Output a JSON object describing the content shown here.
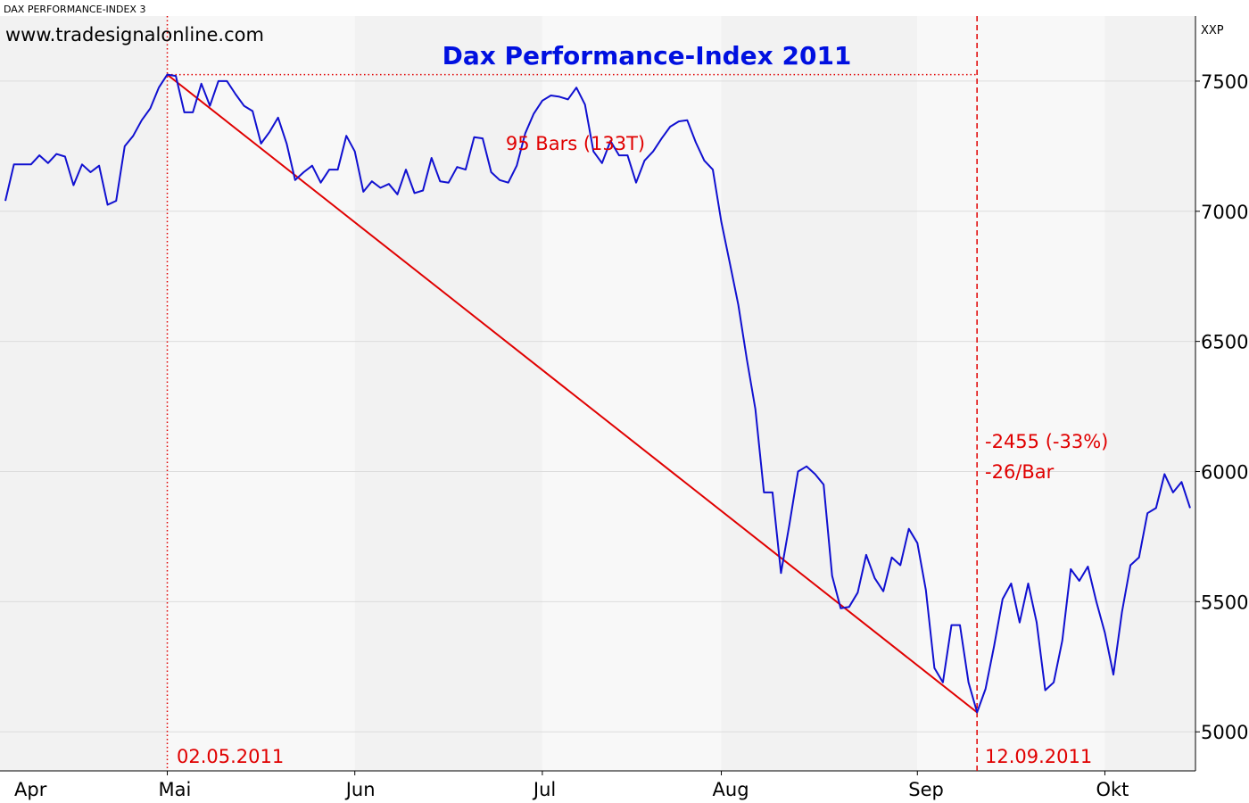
{
  "header": {
    "instrument": "DAX PERFORMANCE-INDEX 3",
    "website": "www.tradesignalonline.com",
    "unit": "XXP"
  },
  "colors": {
    "price_line": "#1010d0",
    "annotation": "#e00000",
    "title": "#0010e0",
    "band_dark": "#f2f2f2",
    "band_light": "#f8f8f8",
    "grid": "#dcdcdc"
  },
  "chart_data": {
    "type": "line",
    "title": "Dax Performance-Index 2011",
    "xlabel": "",
    "ylabel": "",
    "ylim": [
      4850,
      7750
    ],
    "xlim": [
      "2011-04-01",
      "2011-10-14"
    ],
    "grid": true,
    "y_ticks": [
      5000,
      5500,
      6000,
      6500,
      7000,
      7500
    ],
    "month_labels": [
      {
        "label": "Apr",
        "date": "2011-04-01"
      },
      {
        "label": "Mai",
        "date": "2011-05-02"
      },
      {
        "label": "Jun",
        "date": "2011-06-01"
      },
      {
        "label": "Jul",
        "date": "2011-07-01"
      },
      {
        "label": "Aug",
        "date": "2011-08-01"
      },
      {
        "label": "Sep",
        "date": "2011-09-01"
      },
      {
        "label": "Okt",
        "date": "2011-10-03"
      }
    ],
    "series": [
      {
        "values": [
          [
            "2011-04-01",
            7040
          ],
          [
            "2011-04-04",
            7180
          ],
          [
            "2011-04-05",
            7180
          ],
          [
            "2011-04-06",
            7180
          ],
          [
            "2011-04-07",
            7215
          ],
          [
            "2011-04-08",
            7185
          ],
          [
            "2011-04-11",
            7220
          ],
          [
            "2011-04-12",
            7210
          ],
          [
            "2011-04-13",
            7100
          ],
          [
            "2011-04-14",
            7180
          ],
          [
            "2011-04-15",
            7150
          ],
          [
            "2011-04-18",
            7175
          ],
          [
            "2011-04-19",
            7025
          ],
          [
            "2011-04-20",
            7040
          ],
          [
            "2011-04-21",
            7250
          ],
          [
            "2011-04-26",
            7290
          ],
          [
            "2011-04-27",
            7350
          ],
          [
            "2011-04-28",
            7395
          ],
          [
            "2011-04-29",
            7475
          ],
          [
            "2011-05-02",
            7525
          ],
          [
            "2011-05-03",
            7520
          ],
          [
            "2011-05-04",
            7380
          ],
          [
            "2011-05-05",
            7380
          ],
          [
            "2011-05-06",
            7490
          ],
          [
            "2011-05-09",
            7405
          ],
          [
            "2011-05-10",
            7500
          ],
          [
            "2011-05-11",
            7500
          ],
          [
            "2011-05-12",
            7450
          ],
          [
            "2011-05-13",
            7405
          ],
          [
            "2011-05-16",
            7385
          ],
          [
            "2011-05-17",
            7260
          ],
          [
            "2011-05-18",
            7305
          ],
          [
            "2011-05-19",
            7360
          ],
          [
            "2011-05-20",
            7260
          ],
          [
            "2011-05-23",
            7120
          ],
          [
            "2011-05-24",
            7150
          ],
          [
            "2011-05-25",
            7175
          ],
          [
            "2011-05-26",
            7110
          ],
          [
            "2011-05-27",
            7160
          ],
          [
            "2011-05-30",
            7160
          ],
          [
            "2011-05-31",
            7290
          ],
          [
            "2011-06-01",
            7230
          ],
          [
            "2011-06-02",
            7075
          ],
          [
            "2011-06-03",
            7115
          ],
          [
            "2011-06-06",
            7090
          ],
          [
            "2011-06-07",
            7105
          ],
          [
            "2011-06-08",
            7065
          ],
          [
            "2011-06-09",
            7160
          ],
          [
            "2011-06-10",
            7070
          ],
          [
            "2011-06-13",
            7080
          ],
          [
            "2011-06-14",
            7205
          ],
          [
            "2011-06-15",
            7115
          ],
          [
            "2011-06-16",
            7110
          ],
          [
            "2011-06-17",
            7170
          ],
          [
            "2011-06-20",
            7160
          ],
          [
            "2011-06-21",
            7285
          ],
          [
            "2011-06-22",
            7280
          ],
          [
            "2011-06-23",
            7150
          ],
          [
            "2011-06-24",
            7120
          ],
          [
            "2011-06-27",
            7110
          ],
          [
            "2011-06-28",
            7175
          ],
          [
            "2011-06-29",
            7300
          ],
          [
            "2011-06-30",
            7375
          ],
          [
            "2011-07-01",
            7425
          ],
          [
            "2011-07-04",
            7445
          ],
          [
            "2011-07-05",
            7440
          ],
          [
            "2011-07-06",
            7430
          ],
          [
            "2011-07-07",
            7475
          ],
          [
            "2011-07-08",
            7410
          ],
          [
            "2011-07-11",
            7230
          ],
          [
            "2011-07-12",
            7185
          ],
          [
            "2011-07-13",
            7270
          ],
          [
            "2011-07-14",
            7215
          ],
          [
            "2011-07-15",
            7215
          ],
          [
            "2011-07-18",
            7110
          ],
          [
            "2011-07-19",
            7195
          ],
          [
            "2011-07-20",
            7230
          ],
          [
            "2011-07-21",
            7280
          ],
          [
            "2011-07-22",
            7325
          ],
          [
            "2011-07-25",
            7345
          ],
          [
            "2011-07-26",
            7350
          ],
          [
            "2011-07-27",
            7265
          ],
          [
            "2011-07-28",
            7195
          ],
          [
            "2011-07-29",
            7160
          ],
          [
            "2011-08-01",
            6960
          ],
          [
            "2011-08-02",
            6800
          ],
          [
            "2011-08-03",
            6640
          ],
          [
            "2011-08-04",
            6430
          ],
          [
            "2011-08-05",
            6240
          ],
          [
            "2011-08-08",
            5920
          ],
          [
            "2011-08-09",
            5920
          ],
          [
            "2011-08-10",
            5610
          ],
          [
            "2011-08-11",
            5800
          ],
          [
            "2011-08-12",
            6000
          ],
          [
            "2011-08-15",
            6020
          ],
          [
            "2011-08-16",
            5990
          ],
          [
            "2011-08-17",
            5950
          ],
          [
            "2011-08-18",
            5600
          ],
          [
            "2011-08-19",
            5475
          ],
          [
            "2011-08-22",
            5480
          ],
          [
            "2011-08-23",
            5535
          ],
          [
            "2011-08-24",
            5680
          ],
          [
            "2011-08-25",
            5590
          ],
          [
            "2011-08-26",
            5540
          ],
          [
            "2011-08-29",
            5670
          ],
          [
            "2011-08-30",
            5640
          ],
          [
            "2011-08-31",
            5780
          ],
          [
            "2011-09-01",
            5725
          ],
          [
            "2011-09-02",
            5545
          ],
          [
            "2011-09-05",
            5245
          ],
          [
            "2011-09-06",
            5190
          ],
          [
            "2011-09-07",
            5410
          ],
          [
            "2011-09-08",
            5410
          ],
          [
            "2011-09-09",
            5190
          ],
          [
            "2011-09-12",
            5075
          ],
          [
            "2011-09-13",
            5165
          ],
          [
            "2011-09-14",
            5330
          ],
          [
            "2011-09-15",
            5510
          ],
          [
            "2011-09-16",
            5570
          ],
          [
            "2011-09-19",
            5420
          ],
          [
            "2011-09-20",
            5570
          ],
          [
            "2011-09-21",
            5420
          ],
          [
            "2011-09-22",
            5160
          ],
          [
            "2011-09-23",
            5190
          ],
          [
            "2011-09-26",
            5350
          ],
          [
            "2011-09-27",
            5625
          ],
          [
            "2011-09-28",
            5580
          ],
          [
            "2011-09-29",
            5635
          ],
          [
            "2011-09-30",
            5500
          ],
          [
            "2011-10-03",
            5380
          ],
          [
            "2011-10-04",
            5220
          ],
          [
            "2011-10-05",
            5460
          ],
          [
            "2011-10-06",
            5640
          ],
          [
            "2011-10-07",
            5670
          ],
          [
            "2011-10-10",
            5840
          ],
          [
            "2011-10-11",
            5860
          ],
          [
            "2011-10-12",
            5990
          ],
          [
            "2011-10-13",
            5920
          ],
          [
            "2011-10-14",
            5960
          ],
          [
            "2011-10-17",
            5860
          ]
        ]
      }
    ],
    "annotations": {
      "start_date_label": "02.05.2011",
      "end_date_label": "12.09.2011",
      "bars_label": "95 Bars (133T)",
      "change_label": "-2455 (-33%)",
      "rate_label": "-26/Bar",
      "trendline": [
        [
          "2011-05-02",
          7525
        ],
        [
          "2011-09-12",
          5075
        ]
      ]
    }
  }
}
